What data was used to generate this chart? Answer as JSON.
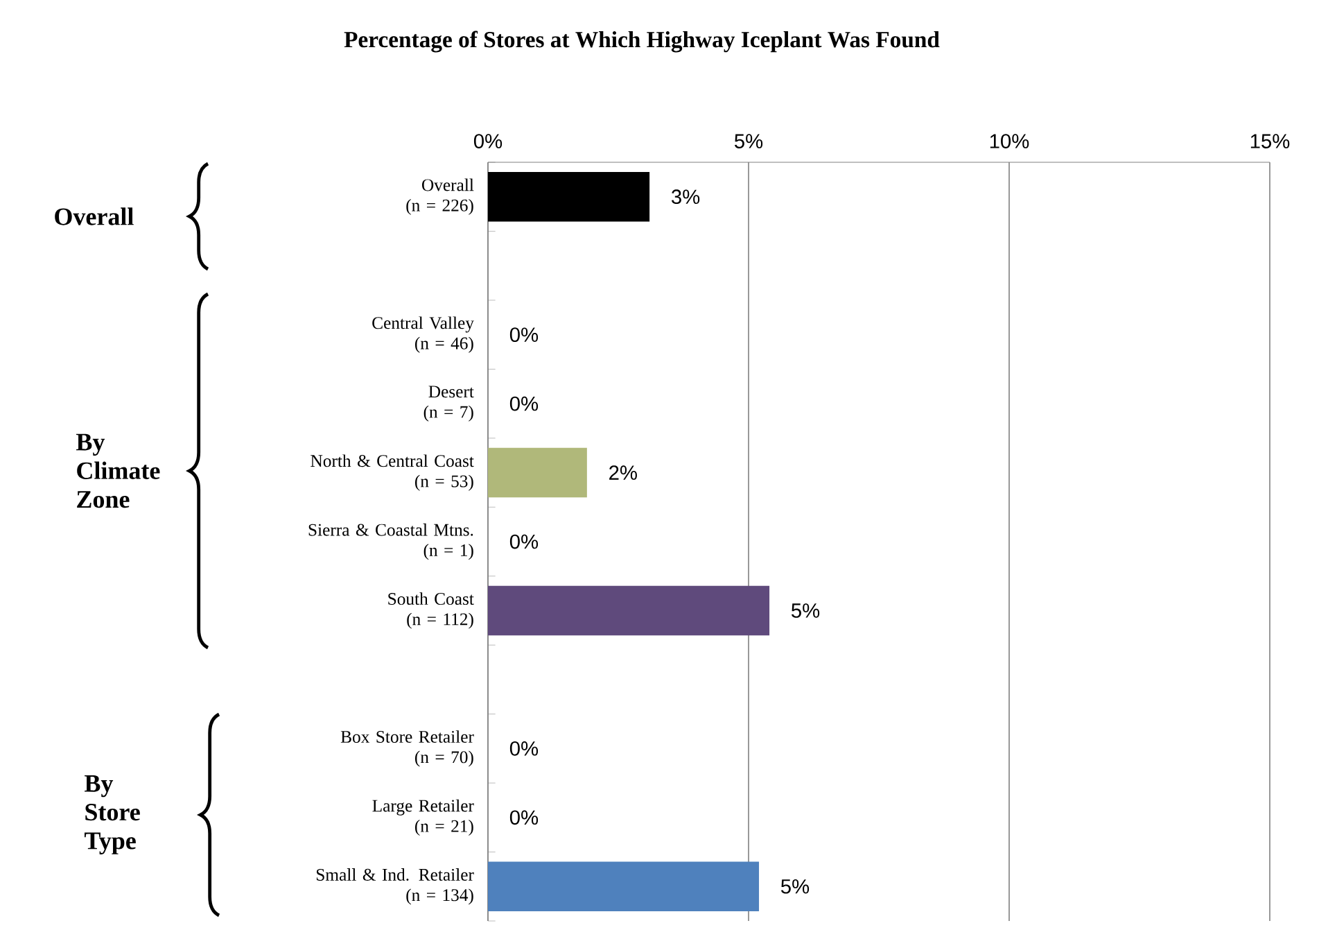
{
  "chart_data": {
    "type": "bar",
    "orientation": "horizontal",
    "title": "Percentage of Stores at Which Highway Iceplant Was Found",
    "categories": [
      "Overall\n(n = 226)",
      null,
      "Central Valley\n(n = 46)",
      "Desert\n(n = 7)",
      "North & Central Coast\n(n = 53)",
      "Sierra & Coastal Mtns.\n(n = 1)",
      "South Coast\n(n = 112)",
      null,
      "Box Store Retailer\n(n = 70)",
      "Large Retailer\n(n = 21)",
      "Small & Ind. Retailer\n(n = 134)"
    ],
    "values": [
      3.1,
      null,
      0,
      0,
      1.9,
      0,
      5.4,
      null,
      0,
      0,
      5.2
    ],
    "value_labels": [
      "3%",
      null,
      "0%",
      "0%",
      "2%",
      "0%",
      "5%",
      null,
      "0%",
      "0%",
      "5%"
    ],
    "colors": [
      "#000000",
      "#ffffff",
      "#000000",
      "#000000",
      "#b0b87a",
      "#000000",
      "#5f4a7c",
      "#ffffff",
      "#000000",
      "#000000",
      "#4f81bd"
    ],
    "xlim": [
      0,
      15
    ],
    "xticks": [
      {
        "value": 0,
        "label": "0%"
      },
      {
        "value": 5,
        "label": "5%"
      },
      {
        "value": 10,
        "label": "10%"
      },
      {
        "value": 15,
        "label": "15%"
      }
    ],
    "grid": "x",
    "annotations": [
      "Overall",
      "By Climate Zone",
      "By Store Type"
    ]
  }
}
